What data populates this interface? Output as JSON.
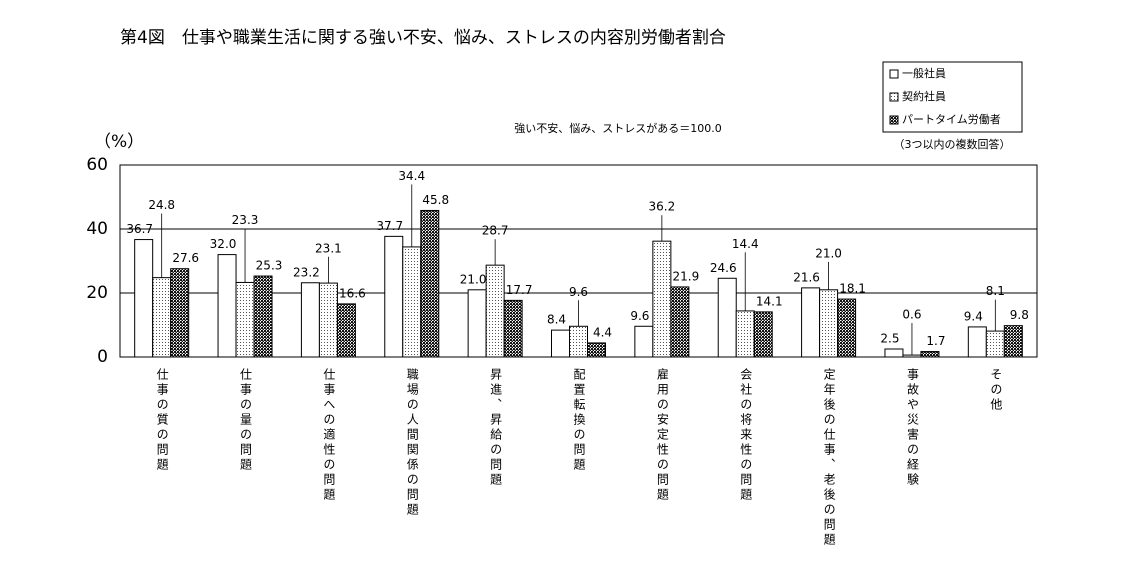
{
  "chart_data": {
    "type": "bar",
    "title": "第4図　仕事や職業生活に関する強い不安、悩み、ストレスの内容別労働者割合",
    "subtitle": "強い不安、悩み、ストレスがある＝100.0",
    "y_label": "（%）",
    "note": "（3つ以内の複数回答）",
    "categories": [
      "仕事の質の問題",
      "仕事の量の問題",
      "仕事への適性の問題",
      "職場の人間関係の問題",
      "昇進、昇給の問題",
      "配置転換の問題",
      "雇用の安定性の問題",
      "会社の将来性の問題",
      "定年後の仕事、老後の問題",
      "事故や災害の経験",
      "その他"
    ],
    "series": [
      {
        "name": "一般社員",
        "color": "#ffffff",
        "values": [
          36.7,
          32.0,
          23.2,
          37.7,
          21.0,
          8.4,
          9.6,
          24.6,
          21.6,
          2.5,
          9.4
        ],
        "value_labels": [
          "36.7",
          "32.0",
          "23.2",
          "37.7",
          "21.0",
          "8.4",
          "9.6",
          "24.6",
          "21.6",
          "2.5",
          "9.4"
        ]
      },
      {
        "name": "契約社員",
        "color": "#e6e6e6",
        "values": [
          24.8,
          23.3,
          23.1,
          34.4,
          28.7,
          9.6,
          36.2,
          14.4,
          21.0,
          0.6,
          8.1
        ],
        "value_labels": [
          "24.8",
          "23.3",
          "23.1",
          "34.4",
          "28.7",
          "9.6",
          "36.2",
          "14.4",
          "21.0",
          "0.6",
          "8.1"
        ]
      },
      {
        "name": "パートタイム労働者",
        "color": "#111111",
        "values": [
          27.6,
          25.3,
          16.6,
          45.8,
          17.7,
          4.4,
          21.9,
          14.1,
          18.1,
          1.7,
          9.8
        ],
        "value_labels": [
          "27.6",
          "25.3",
          "16.6",
          "45.8",
          "17.7",
          "4.4",
          "21.9",
          "14.1",
          "18.1",
          "1.7",
          "9.8"
        ]
      }
    ],
    "ylim": [
      0,
      60
    ],
    "yticks": [
      0,
      20,
      40,
      60
    ],
    "grid": true,
    "legend": "top-right"
  }
}
